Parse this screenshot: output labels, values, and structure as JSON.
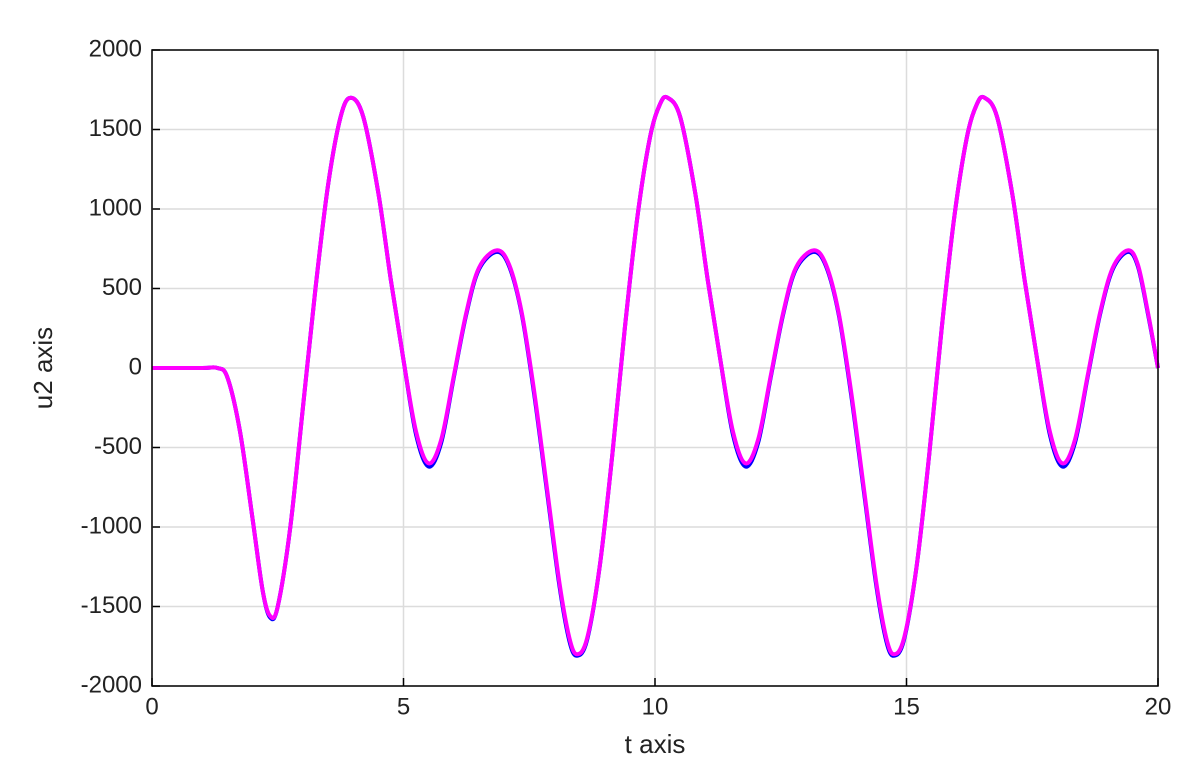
{
  "chart_data": {
    "type": "line",
    "x_label": "t axis",
    "y_label": "u2 axis",
    "x": [
      0,
      1.0,
      1.3,
      1.5,
      1.75,
      2.0,
      2.2,
      2.35,
      2.5,
      2.75,
      3.0,
      3.25,
      3.5,
      3.75,
      3.95,
      4.2,
      4.5,
      4.75,
      5.0,
      5.25,
      5.5,
      5.75,
      6.0,
      6.25,
      6.5,
      6.85,
      7.1,
      7.35,
      7.6,
      7.85,
      8.1,
      8.3,
      8.45,
      8.65,
      8.9,
      9.15,
      9.4,
      9.65,
      9.9,
      10.1,
      10.25,
      10.5,
      10.8,
      11.05,
      11.3,
      11.55,
      11.8,
      12.05,
      12.3,
      12.55,
      12.8,
      13.15,
      13.4,
      13.65,
      13.9,
      14.15,
      14.4,
      14.6,
      14.75,
      14.95,
      15.2,
      15.45,
      15.7,
      15.95,
      16.2,
      16.4,
      16.55,
      16.8,
      17.1,
      17.35,
      17.6,
      17.85,
      18.1,
      18.35,
      18.6,
      18.85,
      19.1,
      19.4,
      19.6,
      19.8,
      20
    ],
    "series": [
      {
        "color": "#0000ff",
        "values": [
          0,
          0,
          0,
          -60,
          -400,
          -950,
          -1400,
          -1570,
          -1500,
          -1000,
          -250,
          500,
          1150,
          1580,
          1700,
          1580,
          1100,
          550,
          50,
          -420,
          -620,
          -470,
          -60,
          340,
          620,
          730,
          640,
          340,
          -170,
          -770,
          -1370,
          -1720,
          -1810,
          -1710,
          -1250,
          -550,
          250,
          950,
          1450,
          1660,
          1700,
          1580,
          1100,
          550,
          50,
          -420,
          -620,
          -470,
          -60,
          340,
          620,
          730,
          640,
          340,
          -170,
          -770,
          -1370,
          -1720,
          -1810,
          -1710,
          -1250,
          -550,
          250,
          950,
          1450,
          1660,
          1700,
          1580,
          1100,
          550,
          50,
          -420,
          -620,
          -470,
          -60,
          340,
          620,
          730,
          640,
          340,
          0
        ]
      },
      {
        "color": "#ff00ff",
        "values": [
          0,
          0,
          0,
          -60,
          -400,
          -950,
          -1400,
          -1560,
          -1500,
          -1000,
          -250,
          500,
          1150,
          1580,
          1700,
          1580,
          1100,
          550,
          50,
          -400,
          -600,
          -450,
          -50,
          350,
          630,
          740,
          650,
          350,
          -150,
          -750,
          -1350,
          -1700,
          -1800,
          -1700,
          -1250,
          -550,
          250,
          950,
          1450,
          1660,
          1700,
          1580,
          1100,
          550,
          50,
          -400,
          -600,
          -450,
          -50,
          350,
          630,
          740,
          650,
          350,
          -150,
          -750,
          -1350,
          -1700,
          -1800,
          -1700,
          -1250,
          -550,
          250,
          950,
          1450,
          1660,
          1700,
          1580,
          1100,
          550,
          50,
          -400,
          -600,
          -450,
          -50,
          350,
          630,
          740,
          650,
          350,
          0
        ]
      }
    ],
    "xlim": [
      0,
      20
    ],
    "xticks": [
      0,
      5,
      10,
      15,
      20
    ],
    "ylim": [
      -2000,
      2000
    ],
    "yticks": [
      -2000,
      -1500,
      -1000,
      -500,
      0,
      500,
      1000,
      1500,
      2000
    ],
    "grid": true
  }
}
